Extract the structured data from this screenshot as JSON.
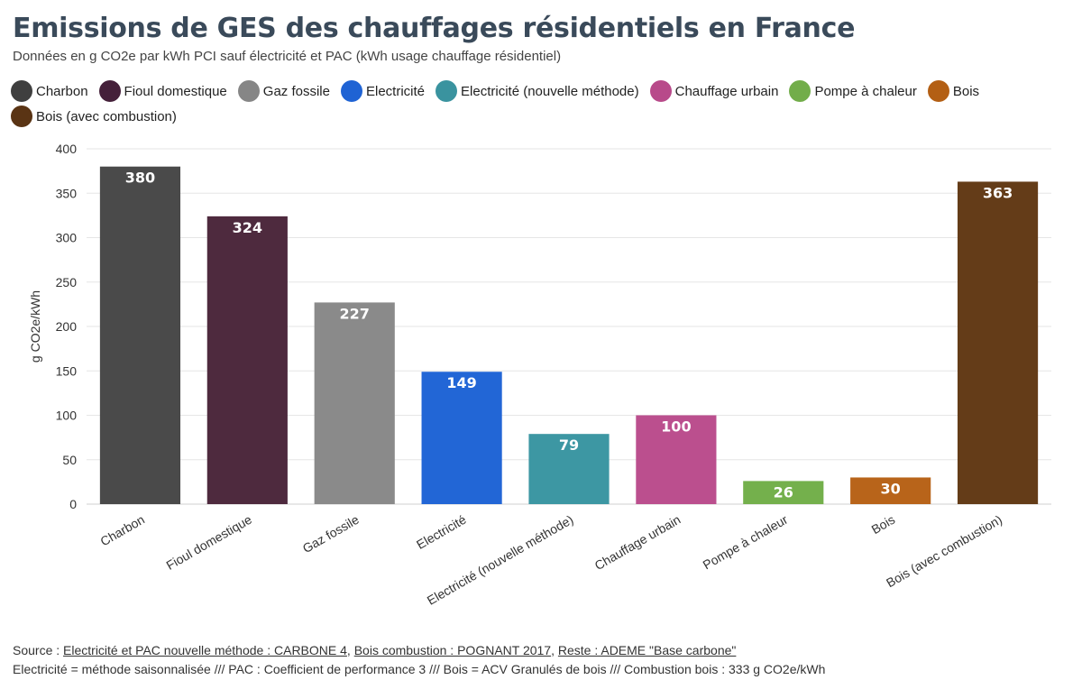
{
  "title": "Emissions de GES des chauffages résidentiels en France",
  "subtitle": "Données en g CO2e par kWh PCI sauf électricité et PAC (kWh usage chauffage résidentiel)",
  "footer": {
    "source_prefix": "Source : ",
    "source_link1": "Electricité et PAC nouvelle méthode : CARBONE 4",
    "sep1": ", ",
    "source_link2": "Bois combustion : POGNANT 2017",
    "sep2": ", ",
    "source_link3": "Reste : ADEME \"Base carbone\"",
    "note": "Electricité = méthode saisonnalisée /// PAC : Coefficient de performance 3 /// Bois = ACV Granulés de bois /// Combustion bois : 333 g CO2e/kWh"
  },
  "chart_data": {
    "type": "bar",
    "title": "Emissions de GES des chauffages résidentiels en France",
    "subtitle": "Données en g CO2e par kWh PCI sauf électricité et PAC (kWh usage chauffage résidentiel)",
    "ylabel": "g CO2e/kWh",
    "xlabel": "",
    "ylim": [
      0,
      400
    ],
    "yticks": [
      0,
      50,
      100,
      150,
      200,
      250,
      300,
      350,
      400
    ],
    "grid": true,
    "legend_position": "top",
    "categories": [
      "Charbon",
      "Fioul domestique",
      "Gaz fossile",
      "Electricité",
      "Electricité (nouvelle méthode)",
      "Chauffage urbain",
      "Pompe à chaleur",
      "Bois",
      "Bois (avec combustion)"
    ],
    "values": [
      380,
      324,
      227,
      149,
      79,
      100,
      26,
      30,
      363
    ],
    "colors": [
      "#4a4a4a",
      "#4e2a3e",
      "#8a8a8a",
      "#2266d6",
      "#3d97a3",
      "#bb4f8e",
      "#74b04c",
      "#b8641a",
      "#643c18"
    ],
    "legend": [
      {
        "name": "Charbon",
        "color": "#3f3f3f"
      },
      {
        "name": "Fioul domestique",
        "color": "#45203a"
      },
      {
        "name": "Gaz fossile",
        "color": "#868686"
      },
      {
        "name": "Electricité",
        "color": "#1f63d4"
      },
      {
        "name": "Electricité (nouvelle méthode)",
        "color": "#3a939f"
      },
      {
        "name": "Chauffage urbain",
        "color": "#b84a8a"
      },
      {
        "name": "Pompe à chaleur",
        "color": "#72ad4a"
      },
      {
        "name": "Bois",
        "color": "#b35f14"
      },
      {
        "name": "Bois (avec combustion)",
        "color": "#5a3414"
      }
    ]
  }
}
